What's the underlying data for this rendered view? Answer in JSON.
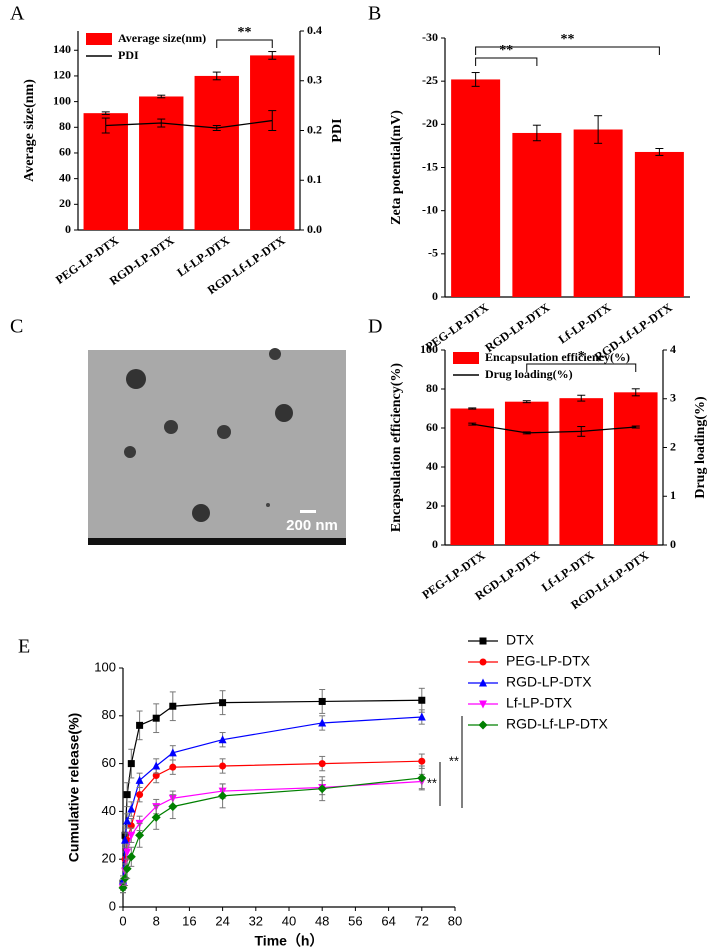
{
  "chart_data": [
    {
      "type": "combo",
      "panel_label": "A",
      "categories": [
        "PEG-LP-DTX",
        "RGD-LP-DTX",
        "Lf-LP-DTX",
        "RGD-Lf-LP-DTX"
      ],
      "y_label": "Average size(nm)",
      "y2_label": "PDI",
      "series": [
        {
          "name": "Average size(nm)",
          "color": "#ff0000",
          "values": [
            91,
            104,
            120,
            136
          ],
          "errors": [
            1,
            1,
            3,
            3
          ]
        },
        {
          "name": "PDI",
          "color": "#000000",
          "axis": "y2",
          "values": [
            0.21,
            0.215,
            0.205,
            0.22
          ],
          "errors": [
            0.015,
            0.008,
            0.005,
            0.02
          ]
        }
      ],
      "ylim": [
        0,
        155
      ],
      "yticks": [
        0,
        20,
        40,
        60,
        80,
        100,
        120,
        140
      ],
      "y2lim": [
        0,
        0.4
      ],
      "y2ticks": [
        {
          "value": 0,
          "label": "0.0"
        },
        0.1,
        0.2,
        0.3,
        0.4
      ],
      "annotations": [
        "**"
      ],
      "legend": "upper left"
    },
    {
      "type": "bar",
      "panel_label": "B",
      "categories": [
        "PEG-LP-DTX",
        "RGD-LP-DTX",
        "Lf-LP-DTX",
        "RGD-Lf-LP-DTX"
      ],
      "y_label": "Zeta potential(mV)",
      "color": "#ff0000",
      "values": [
        -25.2,
        -19,
        -19.4,
        -16.8
      ],
      "errors": [
        0.8,
        0.9,
        1.6,
        0.4
      ],
      "ylim": [
        0,
        -30
      ],
      "yticks": [
        0,
        -5,
        -10,
        -15,
        -20,
        -25,
        -30
      ],
      "annotations": [
        "**",
        "**"
      ]
    },
    {
      "type": "combo",
      "panel_label": "D",
      "categories": [
        "PEG-LP-DTX",
        "RGD-LP-DTX",
        "Lf-LP-DTX",
        "RGD-Lf-LP-DTX"
      ],
      "y_label": "Encapsulation efficiency(%)",
      "y2_label": "Drug loading(%)",
      "series": [
        {
          "name": "Encapsulation efficiency(%)",
          "color": "#ff0000",
          "values": [
            70,
            73.5,
            75.3,
            78.3
          ],
          "errors": [
            0.3,
            0.5,
            1.5,
            1.8
          ]
        },
        {
          "name": "Drug loading(%)",
          "color": "#000000",
          "axis": "y2",
          "values": [
            2.48,
            2.3,
            2.33,
            2.42
          ],
          "errors": [
            0.02,
            0.02,
            0.1,
            0.02
          ]
        }
      ],
      "ylim": [
        0,
        100
      ],
      "yticks": [
        0,
        20,
        40,
        60,
        80,
        100
      ],
      "y2lim": [
        0,
        4
      ],
      "y2ticks": [
        0,
        1,
        2,
        3,
        4
      ],
      "annotations": [
        "*"
      ],
      "legend": "upper left"
    },
    {
      "type": "line",
      "panel_label": "E",
      "x_label": "Time（h）",
      "y_label": "Cumulative release(%)",
      "x": [
        0,
        0.5,
        1,
        2,
        4,
        8,
        12,
        24,
        48,
        72
      ],
      "series": [
        {
          "name": "DTX",
          "color": "#000000",
          "marker": "square",
          "values": [
            10,
            30,
            47,
            60,
            76,
            79,
            84,
            85.5,
            86,
            86.5
          ],
          "errors": [
            2,
            4,
            5,
            6,
            6,
            6,
            6,
            5,
            5,
            5
          ]
        },
        {
          "name": "PEG-LP-DTX",
          "color": "#ff0000",
          "marker": "circle",
          "values": [
            9,
            20,
            28,
            34,
            47,
            55,
            58.5,
            59,
            60,
            61
          ],
          "errors": [
            2,
            3,
            3,
            3,
            3,
            3,
            3,
            3,
            3,
            3
          ]
        },
        {
          "name": "RGD-LP-DTX",
          "color": "#0000ff",
          "marker": "triangle-up",
          "values": [
            11,
            28,
            36,
            41,
            53,
            59,
            64.5,
            70,
            77,
            79.5
          ],
          "errors": [
            2,
            3,
            3,
            3,
            3,
            3,
            3,
            3,
            3,
            3
          ]
        },
        {
          "name": "Lf-LP-DTX",
          "color": "#ff00ff",
          "marker": "triangle-down",
          "values": [
            8,
            15,
            23,
            30,
            35,
            42,
            45.5,
            48.5,
            50,
            52.5
          ],
          "errors": [
            2,
            3,
            3,
            3,
            3,
            3,
            3,
            3,
            3,
            3
          ]
        },
        {
          "name": "RGD-Lf-LP-DTX",
          "color": "#008000",
          "marker": "diamond",
          "values": [
            8,
            12,
            16,
            21,
            30,
            37.5,
            42,
            46.5,
            49.5,
            54
          ],
          "errors": [
            2,
            3,
            4,
            4,
            5,
            5,
            5,
            5,
            5,
            5
          ]
        }
      ],
      "xlim": [
        0,
        80
      ],
      "xticks": [
        0,
        8,
        16,
        24,
        32,
        40,
        48,
        56,
        64,
        72,
        80
      ],
      "ylim": [
        0,
        100
      ],
      "yticks": [
        0,
        20,
        40,
        60,
        80,
        100
      ],
      "annotations": [
        "**",
        "**"
      ],
      "legend": "outside right"
    }
  ],
  "micrograph": {
    "panel_label": "C",
    "scale_label": "200 nm"
  }
}
